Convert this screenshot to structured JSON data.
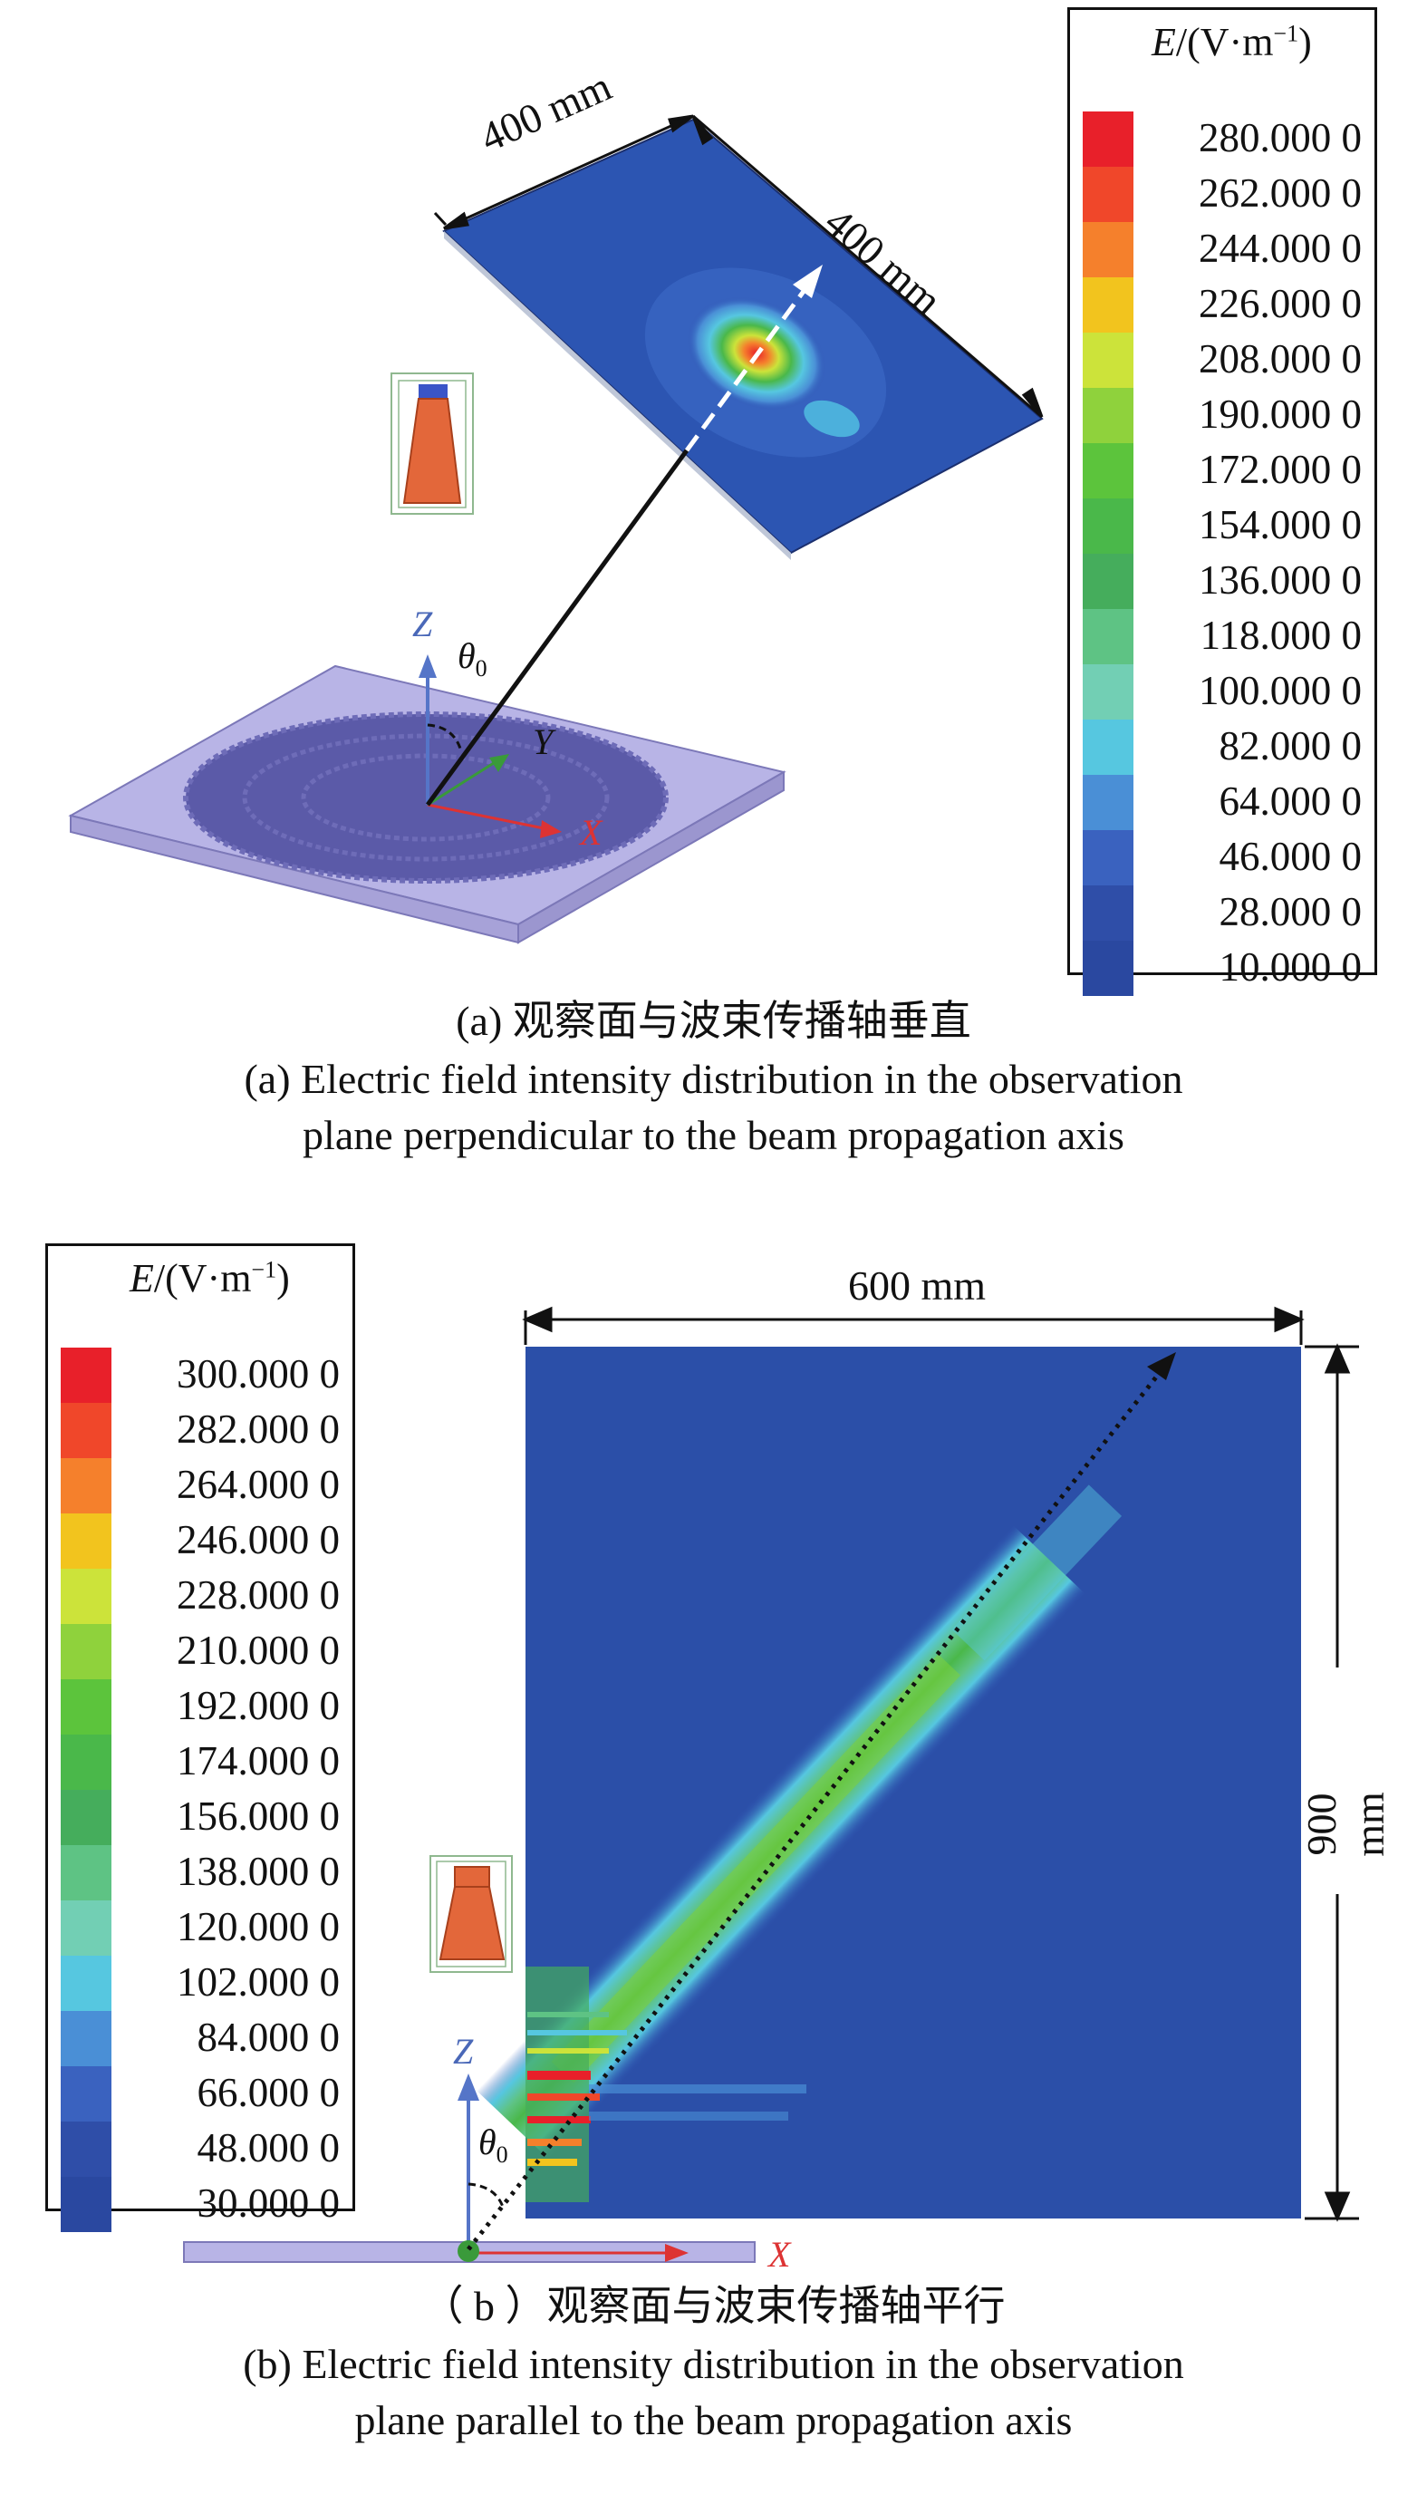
{
  "panel_a": {
    "legend": {
      "title_var": "E",
      "title_unit": "/(V·m",
      "title_sup": "−1",
      "title_close": ")",
      "values": [
        "280.000 0",
        "262.000 0",
        "244.000 0",
        "226.000 0",
        "208.000 0",
        "190.000 0",
        "172.000 0",
        "154.000 0",
        "136.000 0",
        "118.000 0",
        "100.000 0",
        "82.000 0",
        "64.000 0",
        "46.000 0",
        "28.000 0",
        "10.000 0"
      ],
      "colors": [
        "#e8202a",
        "#f0472a",
        "#f5802c",
        "#f2c41e",
        "#cce33a",
        "#8fd23c",
        "#5cc43c",
        "#4ab84a",
        "#45ad5c",
        "#5ec384",
        "#72cfb4",
        "#56c7e0",
        "#4a8fd6",
        "#3a62bf",
        "#2f4ea8",
        "#2a48a0"
      ]
    },
    "dim_top": "400 mm",
    "dim_right": "400 mm",
    "axis_z": "Z",
    "axis_y": "Y",
    "axis_x": "X",
    "theta": "θ",
    "theta_sub": "0",
    "caption_zh": "(a) 观察面与波束传播轴垂直",
    "caption_en_1": "(a) Electric field intensity distribution in the observation",
    "caption_en_2": "plane perpendicular to the beam propagation axis"
  },
  "panel_b": {
    "legend": {
      "title_var": "E",
      "title_unit": "/(V·m",
      "title_sup": "−1",
      "title_close": ")",
      "values": [
        "300.000 0",
        "282.000 0",
        "264.000 0",
        "246.000 0",
        "228.000 0",
        "210.000 0",
        "192.000 0",
        "174.000 0",
        "156.000 0",
        "138.000 0",
        "120.000 0",
        "102.000 0",
        "84.000 0",
        "66.000 0",
        "48.000 0",
        "30.000 0"
      ],
      "colors": [
        "#e8202a",
        "#f0472a",
        "#f5802c",
        "#f2c41e",
        "#cce33a",
        "#8fd23c",
        "#5cc43c",
        "#4ab84a",
        "#45ad5c",
        "#5ec384",
        "#72cfb4",
        "#56c7e0",
        "#4a8fd6",
        "#3a62bf",
        "#2f4ea8",
        "#2a48a0"
      ]
    },
    "dim_top": "600 mm",
    "dim_right": "900 mm",
    "axis_z": "Z",
    "axis_x": "X",
    "theta": "θ",
    "theta_sub": "0",
    "caption_zh": "（ b ）观察面与波束传播轴平行",
    "caption_en_1": "(b) Electric field intensity distribution in the observation",
    "caption_en_2": "plane parallel to the beam propagation axis"
  }
}
